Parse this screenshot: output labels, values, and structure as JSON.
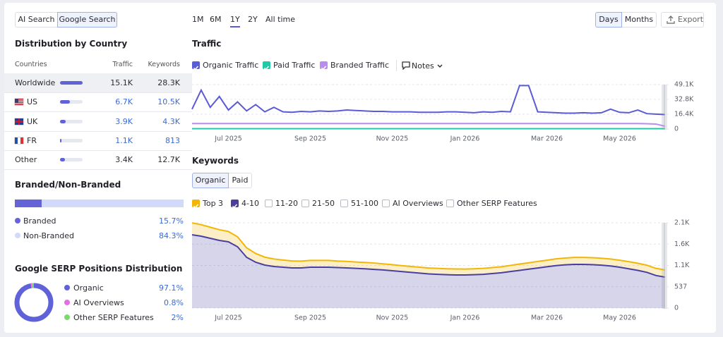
{
  "search_tabs": [
    "AI Search",
    "Google Search"
  ],
  "selected_search_tab": "Google Search",
  "country": {
    "title": "Distribution by Country",
    "headers": [
      "Countries",
      "Traffic",
      "Keywords"
    ],
    "rows": [
      {
        "country": "Worldwide",
        "traffic": {
          "value": 15100,
          "label": "15.1K"
        },
        "keywords": "28.3K"
      },
      {
        "country": "US",
        "traffic": {
          "value": 6700,
          "label": "6.7K"
        },
        "keywords": "10.5K"
      },
      {
        "country": "UK",
        "traffic": {
          "value": 3900,
          "label": "3.9K"
        },
        "keywords": "4.3K"
      },
      {
        "country": "FR",
        "traffic": {
          "value": 1100,
          "label": "1.1K"
        },
        "keywords": "813"
      },
      {
        "country": "Other",
        "traffic": {
          "value": 3400,
          "label": "3.4K"
        },
        "keywords": "12.7K"
      }
    ]
  },
  "branded": {
    "title": "Branded/Non-Branded",
    "items": [
      {
        "name": "Branded",
        "value": 15.7,
        "label": "15.7%",
        "color": "#6464d8"
      },
      {
        "name": "Non-Branded",
        "value": 84.3,
        "label": "84.3%",
        "color": "#d2dafb"
      }
    ]
  },
  "serp": {
    "title": "Google SERP Positions Distribution",
    "items": [
      {
        "name": "Organic",
        "value": 97.1,
        "label": "97.1%",
        "color": "#5f62d8"
      },
      {
        "name": "AI Overviews",
        "value": 0.8,
        "label": "0.8%",
        "color": "#e46fe4"
      },
      {
        "name": "Other SERP Features",
        "value": 2,
        "label": "2%",
        "color": "#7fd86e"
      }
    ]
  },
  "periods": [
    "1M",
    "6M",
    "1Y",
    "2Y",
    "All time"
  ],
  "selected_period": "1Y",
  "granularity": [
    "Days",
    "Months"
  ],
  "selected_granularity": "Days",
  "export": "Export",
  "chart_data": [
    {
      "type": "line",
      "title": "Traffic",
      "notes": "Notes",
      "categories": [
        null,
        null,
        null,
        null,
        "Jul 2025",
        null,
        null,
        null,
        null,
        null,
        null,
        null,
        null,
        "Sep 2025",
        null,
        null,
        null,
        null,
        null,
        null,
        null,
        null,
        "Nov 2025",
        null,
        null,
        null,
        null,
        null,
        null,
        null,
        "Jan 2026",
        null,
        null,
        null,
        null,
        null,
        null,
        null,
        null,
        "Mar 2026",
        null,
        null,
        null,
        null,
        null,
        null,
        null,
        "May 2026",
        null,
        null,
        null,
        null,
        null
      ],
      "ylim": [
        0,
        49100
      ],
      "yticks": [
        0,
        {
          "value": 16400,
          "label": "16.4K"
        },
        {
          "value": 32800,
          "label": "32.8K"
        },
        {
          "value": 49100,
          "label": "49.1K"
        }
      ],
      "grid": true,
      "series": [
        {
          "name": "Organic Traffic",
          "color": "#5b5bd6",
          "values": [
            22000,
            43000,
            24000,
            36000,
            21000,
            30000,
            20000,
            27000,
            19000,
            24000,
            19000,
            18500,
            19500,
            19000,
            20000,
            19500,
            20000,
            21000,
            20500,
            20000,
            19500,
            19500,
            19000,
            19000,
            19000,
            18500,
            18500,
            18500,
            19000,
            19000,
            18500,
            18000,
            19000,
            18500,
            19500,
            19000,
            48000,
            48000,
            19000,
            18500,
            18000,
            17500,
            17500,
            18000,
            17500,
            18000,
            22000,
            18500,
            18000,
            21000,
            17000,
            16500,
            16000
          ]
        },
        {
          "name": "Paid Traffic",
          "color": "#22c9a7",
          "values": [
            400,
            400,
            400,
            400,
            400,
            400,
            400,
            400,
            400,
            400,
            400,
            400,
            400,
            400,
            400,
            400,
            400,
            400,
            400,
            400,
            400,
            400,
            400,
            400,
            400,
            400,
            400,
            400,
            400,
            400,
            400,
            400,
            400,
            400,
            400,
            400,
            400,
            400,
            400,
            400,
            400,
            400,
            400,
            400,
            400,
            400,
            400,
            400,
            400,
            400,
            400,
            400,
            400
          ]
        },
        {
          "name": "Branded Traffic",
          "color": "#b98cf0",
          "values": [
            6000,
            6000,
            6000,
            6000,
            6000,
            6000,
            6000,
            6000,
            6000,
            6000,
            6000,
            6000,
            6000,
            6000,
            6000,
            6000,
            6000,
            6000,
            6000,
            6000,
            6000,
            6000,
            6000,
            6000,
            6000,
            6000,
            6000,
            6000,
            6000,
            6000,
            6000,
            6000,
            6000,
            6000,
            6000,
            6000,
            6000,
            6000,
            6000,
            6000,
            6000,
            6000,
            6000,
            6000,
            6000,
            6000,
            6000,
            6000,
            6000,
            6000,
            5800,
            5500,
            3000
          ]
        }
      ]
    },
    {
      "type": "area",
      "stacked": true,
      "title": "Keywords",
      "tabs": [
        "Organic",
        "Paid"
      ],
      "selected_tab": "Organic",
      "other_filters": [
        "11-20",
        "21-50",
        "51-100",
        "AI Overviews",
        "Other SERP Features"
      ],
      "categories": [
        null,
        null,
        null,
        null,
        "Jul 2025",
        null,
        null,
        null,
        null,
        null,
        null,
        null,
        null,
        "Sep 2025",
        null,
        null,
        null,
        null,
        null,
        null,
        null,
        null,
        "Nov 2025",
        null,
        null,
        null,
        null,
        null,
        null,
        null,
        "Jan 2026",
        null,
        null,
        null,
        null,
        null,
        null,
        null,
        null,
        "Mar 2026",
        null,
        null,
        null,
        null,
        null,
        null,
        null,
        "May 2026",
        null,
        null,
        null,
        null,
        null
      ],
      "ylim": [
        0,
        2148
      ],
      "yticks": [
        0,
        537,
        {
          "value": 1074,
          "label": "1.1K"
        },
        {
          "value": 1611,
          "label": "1.6K"
        },
        {
          "value": 2148,
          "label": "2.1K"
        }
      ],
      "grid": true,
      "series": [
        {
          "name": "Top 3",
          "color": "#f2b705",
          "values": [
            300,
            290,
            280,
            270,
            260,
            250,
            240,
            220,
            200,
            190,
            180,
            175,
            170,
            170,
            170,
            170,
            165,
            165,
            160,
            160,
            160,
            155,
            155,
            150,
            150,
            150,
            150,
            150,
            150,
            150,
            150,
            150,
            150,
            150,
            150,
            155,
            160,
            160,
            165,
            165,
            170,
            170,
            175,
            175,
            175,
            175,
            175,
            175,
            180,
            180,
            180,
            180,
            180
          ]
        },
        {
          "name": "4-10",
          "color": "#4a3f9f",
          "values": [
            1846,
            1810,
            1757,
            1704,
            1669,
            1544,
            1278,
            1154,
            1083,
            1047,
            1030,
            1012,
            1012,
            1030,
            1030,
            1030,
            1020,
            1012,
            1000,
            990,
            975,
            960,
            940,
            920,
            900,
            880,
            860,
            850,
            840,
            835,
            834,
            840,
            850,
            870,
            890,
            920,
            950,
            980,
            1010,
            1040,
            1070,
            1090,
            1100,
            1100,
            1095,
            1080,
            1060,
            1030,
            990,
            950,
            900,
            820,
            780
          ]
        }
      ]
    }
  ]
}
